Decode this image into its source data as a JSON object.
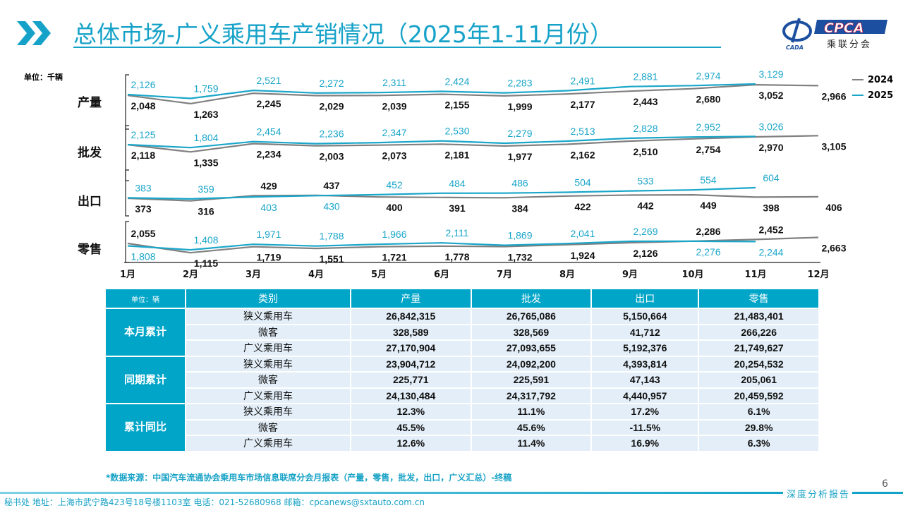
{
  "title": "总体市场-广义乘用车产销情况（2025年1-11月份）",
  "logo": {
    "text": "CPCA",
    "subtext": "乘联分会",
    "small": "CADA"
  },
  "chart_unit": "单位：千辆",
  "colors": {
    "accent": "#16a2c8",
    "series_2024": "#808080",
    "series_2025": "#1aa6c9"
  },
  "legend": [
    "2024",
    "2025"
  ],
  "chart_data": [
    {
      "type": "line",
      "title": "产量",
      "categories": [
        "1月",
        "2月",
        "3月",
        "4月",
        "5月",
        "6月",
        "7月",
        "8月",
        "9月",
        "10月",
        "11月",
        "12月"
      ],
      "series": [
        {
          "name": "2024",
          "values": [
            2048,
            1263,
            2245,
            2029,
            2039,
            2155,
            1999,
            2177,
            2443,
            2680,
            3052,
            2966
          ]
        },
        {
          "name": "2025",
          "values": [
            2126,
            1759,
            2521,
            2272,
            2311,
            2424,
            2283,
            2491,
            2881,
            2974,
            3129,
            null
          ]
        }
      ]
    },
    {
      "type": "line",
      "title": "批发",
      "categories": [
        "1月",
        "2月",
        "3月",
        "4月",
        "5月",
        "6月",
        "7月",
        "8月",
        "9月",
        "10月",
        "11月",
        "12月"
      ],
      "series": [
        {
          "name": "2024",
          "values": [
            2118,
            1335,
            2234,
            2003,
            2073,
            2181,
            1977,
            2162,
            2510,
            2754,
            2970,
            3105
          ]
        },
        {
          "name": "2025",
          "values": [
            2125,
            1804,
            2454,
            2236,
            2347,
            2530,
            2279,
            2513,
            2828,
            2952,
            3026,
            null
          ]
        }
      ]
    },
    {
      "type": "line",
      "title": "出口",
      "categories": [
        "1月",
        "2月",
        "3月",
        "4月",
        "5月",
        "6月",
        "7月",
        "8月",
        "9月",
        "10月",
        "11月",
        "12月"
      ],
      "series": [
        {
          "name": "2024",
          "values": [
            373,
            316,
            429,
            437,
            400,
            391,
            384,
            422,
            442,
            449,
            398,
            406
          ]
        },
        {
          "name": "2025",
          "values": [
            383,
            359,
            403,
            430,
            452,
            484,
            486,
            504,
            533,
            554,
            604,
            null
          ]
        }
      ]
    },
    {
      "type": "line",
      "title": "零售",
      "categories": [
        "1月",
        "2月",
        "3月",
        "4月",
        "5月",
        "6月",
        "7月",
        "8月",
        "9月",
        "10月",
        "11月",
        "12月"
      ],
      "series": [
        {
          "name": "2024",
          "values": [
            2055,
            1115,
            1719,
            1551,
            1721,
            1778,
            1732,
            1924,
            2126,
            2286,
            2452,
            2663
          ]
        },
        {
          "name": "2025",
          "values": [
            1808,
            1408,
            1971,
            1788,
            1966,
            2111,
            1869,
            2041,
            2269,
            2276,
            2244,
            null
          ]
        }
      ]
    }
  ],
  "table": {
    "unit": "单位：辆",
    "headers": [
      "类别",
      "产量",
      "批发",
      "出口",
      "零售"
    ],
    "groups": [
      {
        "label": "本月累计",
        "rows": [
          [
            "狭义乘用车",
            "26,842,315",
            "26,765,086",
            "5,150,664",
            "21,483,401"
          ],
          [
            "微客",
            "328,589",
            "328,569",
            "41,712",
            "266,226"
          ],
          [
            "广义乘用车",
            "27,170,904",
            "27,093,655",
            "5,192,376",
            "21,749,627"
          ]
        ]
      },
      {
        "label": "同期累计",
        "rows": [
          [
            "狭义乘用车",
            "23,904,712",
            "24,092,200",
            "4,393,814",
            "20,254,532"
          ],
          [
            "微客",
            "225,771",
            "225,591",
            "47,143",
            "205,061"
          ],
          [
            "广义乘用车",
            "24,130,484",
            "24,317,792",
            "4,440,957",
            "20,459,592"
          ]
        ]
      },
      {
        "label": "累计同比",
        "rows": [
          [
            "狭义乘用车",
            "12.3%",
            "11.1%",
            "17.2%",
            "6.1%"
          ],
          [
            "微客",
            "45.5%",
            "45.6%",
            "-11.5%",
            "29.8%"
          ],
          [
            "广义乘用车",
            "12.6%",
            "11.4%",
            "16.9%",
            "6.3%"
          ]
        ]
      }
    ]
  },
  "source": "*数据来源：中国汽车流通协会乘用车市场信息联席分会月报表（产量，零售，批发，出口，广义汇总）-终稿",
  "footer": {
    "contact": "秘书处   地址：上海市武宁路423号18号楼1103室  电话：021-52680968   邮箱：cpcanews@sxtauto.com.cn",
    "tag": "深度分析报告",
    "page": "6"
  }
}
